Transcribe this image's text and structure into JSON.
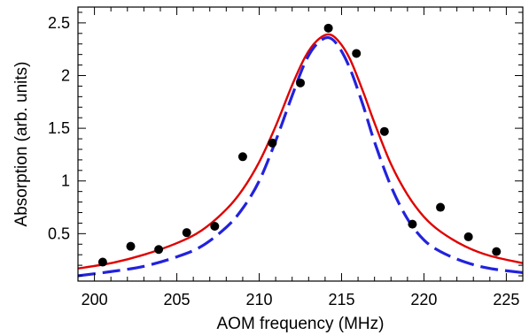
{
  "chart_data": {
    "type": "scatter",
    "xlabel": "AOM frequency (MHz)",
    "ylabel": "Absorption (arb. units)",
    "xlim": [
      199,
      226
    ],
    "ylim": [
      0.05,
      2.65
    ],
    "xticks": [
      200,
      205,
      210,
      215,
      220,
      225
    ],
    "xtick_labels": [
      "200",
      "205",
      "210",
      "215",
      "220",
      "225"
    ],
    "yticks": [
      0.5,
      1,
      1.5,
      2,
      2.5
    ],
    "ytick_labels": [
      "0.5",
      "1",
      "1.5",
      "2",
      "2.5"
    ],
    "grid": false,
    "series": [
      {
        "kind": "points",
        "color": "#000000",
        "x": [
          200.5,
          202.2,
          203.9,
          205.6,
          207.3,
          209.0,
          210.8,
          212.5,
          214.2,
          215.9,
          217.6,
          219.3,
          221.0,
          222.7,
          224.4
        ],
        "y": [
          0.23,
          0.38,
          0.35,
          0.51,
          0.57,
          1.23,
          1.36,
          1.93,
          2.45,
          2.21,
          1.47,
          0.59,
          0.75,
          0.47,
          0.33
        ]
      },
      {
        "kind": "line",
        "style": "solid",
        "color": "#e00000",
        "x": [
          199,
          201,
          203,
          205,
          206.5,
          208,
          209,
          210,
          211,
          212,
          212.8,
          213.5,
          214.2,
          214.8,
          215.5,
          216.3,
          217,
          218,
          219,
          220,
          221,
          222.5,
          224,
          226
        ],
        "y": [
          0.17,
          0.22,
          0.3,
          0.41,
          0.53,
          0.73,
          0.92,
          1.18,
          1.52,
          1.91,
          2.18,
          2.33,
          2.39,
          2.33,
          2.16,
          1.85,
          1.55,
          1.16,
          0.87,
          0.66,
          0.52,
          0.38,
          0.29,
          0.22
        ]
      },
      {
        "kind": "line",
        "style": "dashed",
        "color": "#2222dd",
        "x": [
          199,
          201,
          203,
          205,
          206.5,
          208,
          209,
          210,
          211,
          212,
          212.8,
          213.5,
          214.2,
          214.8,
          215.5,
          216.3,
          217,
          218,
          219,
          220,
          221,
          222.5,
          224,
          226
        ],
        "y": [
          0.1,
          0.14,
          0.19,
          0.28,
          0.38,
          0.56,
          0.74,
          1.0,
          1.38,
          1.81,
          2.13,
          2.3,
          2.36,
          2.28,
          2.07,
          1.72,
          1.37,
          0.95,
          0.64,
          0.44,
          0.33,
          0.23,
          0.17,
          0.13
        ]
      }
    ]
  }
}
